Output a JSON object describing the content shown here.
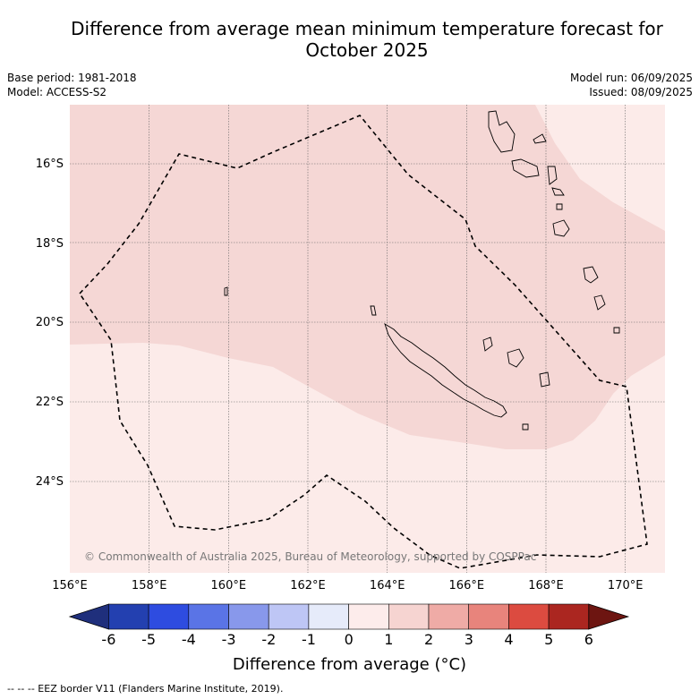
{
  "header": {
    "title_line1": "Difference from average mean minimum temperature forecast for",
    "title_line2": "October 2025",
    "base_period": "Base period: 1981-2018",
    "model": "Model: ACCESS-S2",
    "model_run": "Model run: 06/09/2025",
    "issued": "Issued: 08/09/2025"
  },
  "map": {
    "lon_range": [
      156,
      171
    ],
    "lat_range": [
      -26.2,
      -14.4
    ],
    "x_ticks": [
      "156°E",
      "158°E",
      "160°E",
      "162°E",
      "164°E",
      "166°E",
      "168°E",
      "170°E"
    ],
    "y_ticks": [
      "16°S",
      "18°S",
      "20°S",
      "22°S",
      "24°S"
    ],
    "copyright": "© Commonwealth of Australia 2025, Bureau of Meteorology, supported by COSPPac",
    "colors": {
      "anomaly_0_to_1": "#fcebe9",
      "anomaly_1_to_2": "#f5d7d5",
      "eez_border": "#000000",
      "gridline": "#666666"
    }
  },
  "colorbar": {
    "labels": [
      "-6",
      "-5",
      "-4",
      "-3",
      "-2",
      "-1",
      "0",
      "1",
      "2",
      "3",
      "4",
      "5",
      "6"
    ],
    "colors": [
      "#1f2f7c",
      "#2340b0",
      "#2e4ce0",
      "#5a74e6",
      "#8898eb",
      "#bec6f5",
      "#e6ebfa",
      "#fdeceb",
      "#f6d4d1",
      "#efaba6",
      "#e8847c",
      "#dc4b40",
      "#ab2620",
      "#6d1511"
    ],
    "title": "Difference from average (°C)"
  },
  "footer": {
    "eez_note": "--  --  -- EEZ border V11 (Flanders Marine Institute, 2019)."
  }
}
